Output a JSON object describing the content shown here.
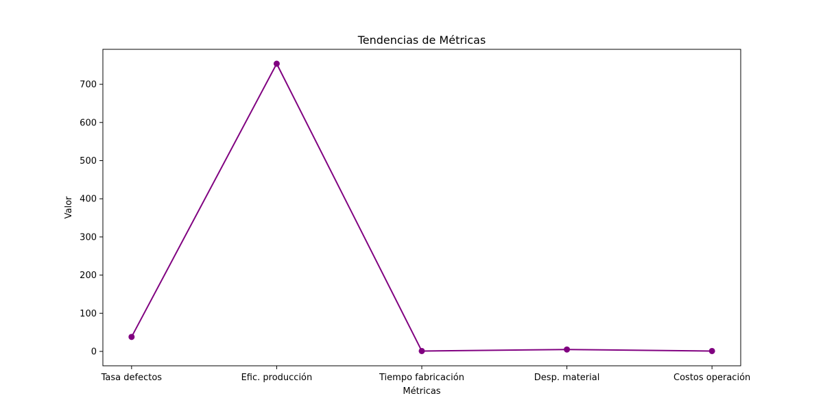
{
  "chart_data": {
    "type": "line",
    "title": "Tendencias de Métricas",
    "xlabel": "Métricas",
    "ylabel": "Valor",
    "categories": [
      "Tasa defectos",
      "Efic. producción",
      "Tiempo fabricación",
      "Desp. material",
      "Costos operación"
    ],
    "series": [
      {
        "values": [
          38,
          754,
          1,
          5,
          1
        ],
        "color": "#800080",
        "marker": "circle"
      }
    ],
    "ylim": [
      -37.7,
      791.7
    ],
    "yticks": [
      0,
      100,
      200,
      300,
      400,
      500,
      600,
      700
    ],
    "grid": false,
    "legend": "none"
  }
}
